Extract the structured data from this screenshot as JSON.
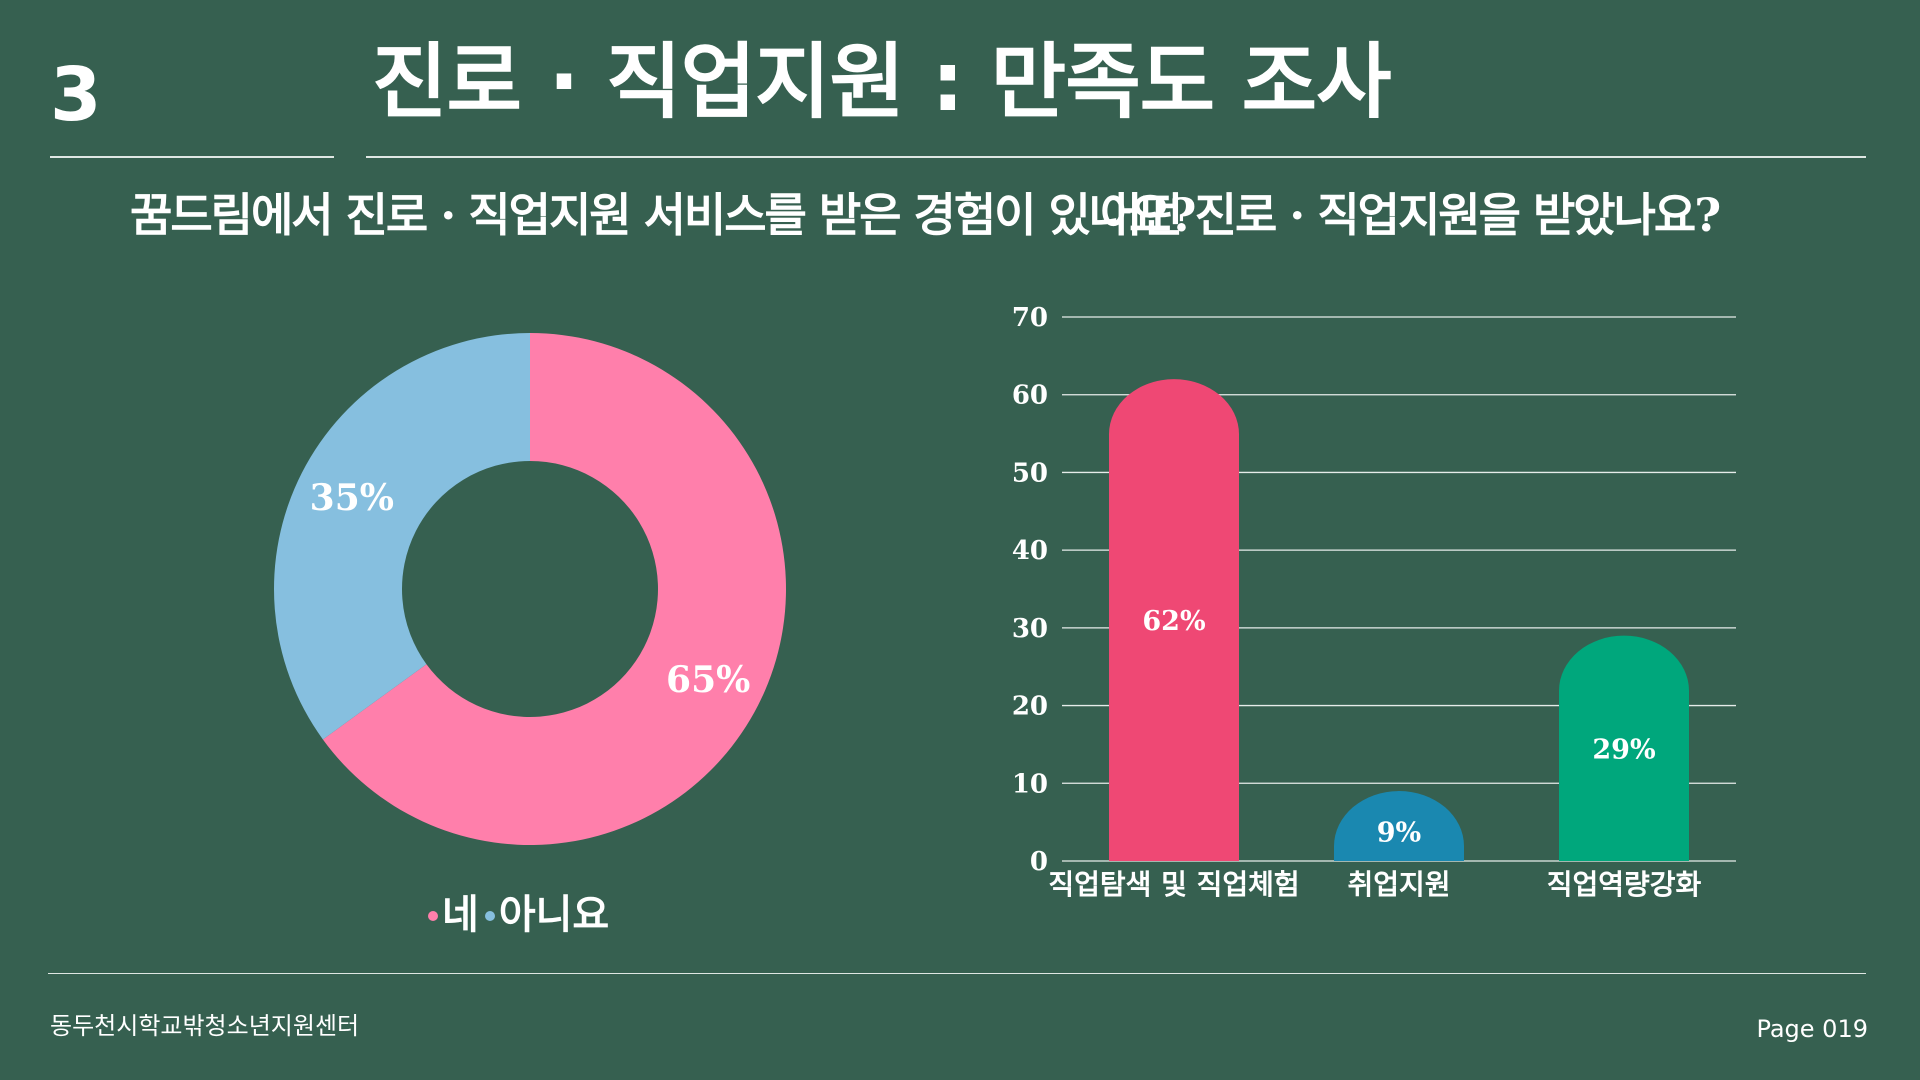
{
  "header": {
    "section_number": "3",
    "title": "진로 · 직업지원 : 만족도 조사"
  },
  "colors": {
    "background": "#366050",
    "pie_yes": "#ff7fab",
    "pie_no": "#86bfdf",
    "bar_1": "#ef4874",
    "bar_2": "#1a88b0",
    "bar_3": "#00a77c",
    "gridline": "#e6ecea"
  },
  "chart_data": [
    {
      "type": "pie",
      "title": "꿈드림에서 진로 · 직업지원 서비스를 받은 경험이 있나요?",
      "categories": [
        "네",
        "아니요"
      ],
      "values": [
        65,
        35
      ],
      "labels": [
        "65%",
        "35%"
      ],
      "donut": true,
      "legend": "bottom",
      "legend_separator": "·"
    },
    {
      "type": "bar",
      "title": "어떤 진로 · 직업지원을 받았나요?",
      "categories": [
        "직업탐색 및 직업체험",
        "취업지원",
        "직업역량강화"
      ],
      "values": [
        62,
        9,
        29
      ],
      "labels": [
        "62%",
        "9%",
        "29%"
      ],
      "ylim": [
        0,
        70
      ],
      "yticks": [
        0,
        10,
        20,
        30,
        40,
        50,
        60,
        70
      ],
      "grid": true,
      "legend": "none"
    }
  ],
  "footer": {
    "organization": "동두천시학교밖청소년지원센터",
    "page": "Page 019"
  }
}
